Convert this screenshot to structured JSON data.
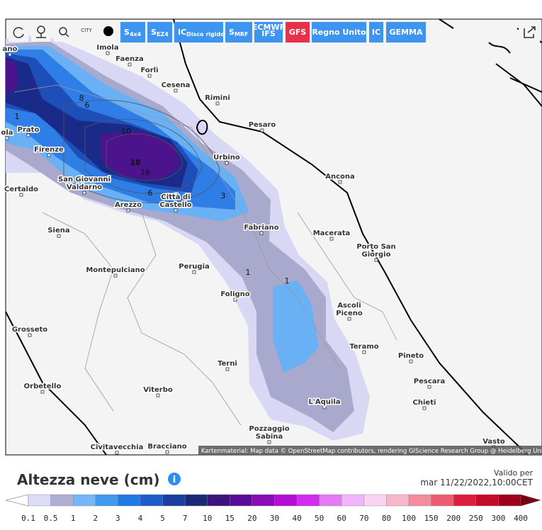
{
  "toolbar": {
    "city_button": "CITY",
    "models": [
      {
        "label": "S",
        "sub": "4x4"
      },
      {
        "label": "S",
        "sub": "EZ4"
      },
      {
        "label": "IC",
        "sub": "Disco rigido"
      },
      {
        "label": "S",
        "sub": "MRF"
      },
      {
        "lines": [
          "ECMWF",
          "IFS"
        ]
      },
      {
        "label": "GFS",
        "active": true
      },
      {
        "label": "Regno Unito"
      },
      {
        "label": "IC"
      },
      {
        "label": "GEMMA"
      }
    ]
  },
  "map": {
    "cities": [
      {
        "name": [
          "ano"
        ]
      },
      {
        "name": [
          "Imola"
        ]
      },
      {
        "name": [
          "Faenza"
        ]
      },
      {
        "name": [
          "Forlì"
        ]
      },
      {
        "name": [
          "Cesena"
        ]
      },
      {
        "name": [
          "Rimini"
        ]
      },
      {
        "name": [
          "Pesaro"
        ]
      },
      {
        "name": [
          "Prato"
        ]
      },
      {
        "name": [
          "ola"
        ]
      },
      {
        "name": [
          "Firenze"
        ]
      },
      {
        "name": [
          "Urbino"
        ]
      },
      {
        "name": [
          "Ancona"
        ]
      },
      {
        "name": [
          "San Giovanni",
          "Valdarno"
        ]
      },
      {
        "name": [
          "Certaldo"
        ]
      },
      {
        "name": [
          "Città di",
          "Castello"
        ]
      },
      {
        "name": [
          "Arezzo"
        ]
      },
      {
        "name": [
          "Fabriano"
        ]
      },
      {
        "name": [
          "Macerata"
        ]
      },
      {
        "name": [
          "Siena"
        ]
      },
      {
        "name": [
          "Porto San",
          "Giorgio"
        ]
      },
      {
        "name": [
          "Montepulciano"
        ]
      },
      {
        "name": [
          "Perugia"
        ]
      },
      {
        "name": [
          "Foligno"
        ]
      },
      {
        "name": [
          "Ascoli",
          "Piceno"
        ]
      },
      {
        "name": [
          "Grosseto"
        ]
      },
      {
        "name": [
          "Teramo"
        ]
      },
      {
        "name": [
          "Pineto"
        ]
      },
      {
        "name": [
          "Terni"
        ]
      },
      {
        "name": [
          "Pescara"
        ]
      },
      {
        "name": [
          "Orbetello"
        ]
      },
      {
        "name": [
          "Viterbo"
        ]
      },
      {
        "name": [
          "Chieti"
        ]
      },
      {
        "name": [
          "L'Aquila"
        ]
      },
      {
        "name": [
          "Pozzaggio",
          "Sabina"
        ]
      },
      {
        "name": [
          "Civitavecchia"
        ]
      },
      {
        "name": [
          "Bracciano"
        ]
      },
      {
        "name": [
          "Vasto"
        ]
      }
    ],
    "contour_labels": [
      "18",
      "16",
      "10",
      "8",
      "6",
      "6",
      "3",
      "1",
      "1",
      "1"
    ],
    "attribution": "Kartenmaterial: Map data © OpenStreetMap contributors, rendering GIScience Research Group @ Heidelberg University"
  },
  "legend": {
    "title": "Altezza neve (cm)",
    "valid_label": "Valido per",
    "valid_time": "mar 11/22/2022,10:00CET",
    "labels": [
      "0.1",
      "0.5",
      "1",
      "2",
      "3",
      "4",
      "5",
      "7",
      "10",
      "15",
      "20",
      "30",
      "40",
      "50",
      "60",
      "70",
      "80",
      "100",
      "150",
      "200",
      "250",
      "300",
      "400"
    ],
    "colors": [
      "#ffffff",
      "#dcdcf7",
      "#aeaed2",
      "#74b6f7",
      "#3f98f2",
      "#1f7ae6",
      "#1e5cc8",
      "#1c3ea0",
      "#1a2878",
      "#3a147c",
      "#5a0c98",
      "#8a0cb6",
      "#b40ed4",
      "#d22cf0",
      "#e67af5",
      "#f0b6fa",
      "#f8d4f2",
      "#f8b6ca",
      "#f48c9c",
      "#ee5a70",
      "#dc1e3c",
      "#c40a28",
      "#a0001e",
      "#780014"
    ]
  }
}
